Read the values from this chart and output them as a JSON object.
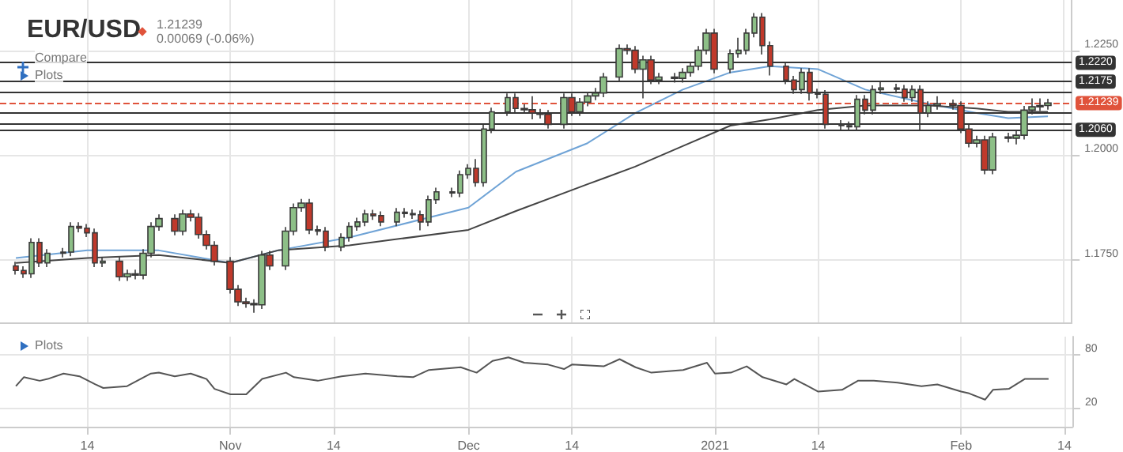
{
  "chart_data": [
    {
      "type": "candlestick",
      "title": "EUR/USD",
      "subtitle": "1.21239\n0.00069 (-0.06%)",
      "annotations": [
        "Compare",
        "Plots"
      ],
      "xlim": [
        "2020-10-03",
        "2021-02-15"
      ],
      "xticks": [
        {
          "value": "2020-10-14",
          "label": null
        },
        {
          "value": "2020-11-01",
          "label": null
        },
        {
          "value": "2020-11-14",
          "label": null
        },
        {
          "value": "2020-12-01",
          "label": null
        },
        {
          "value": "2020-12-14",
          "label": null
        },
        {
          "value": "2021-01-01",
          "label": null
        },
        {
          "value": "2021-01-14",
          "label": null
        },
        {
          "value": "2021-02-01",
          "label": null
        },
        {
          "value": "2021-02-14",
          "label": null
        }
      ],
      "ylim": [
        1.16,
        1.237
      ],
      "yticks": [
        {
          "value": 1.175,
          "label": "1.1750"
        },
        {
          "value": 1.2,
          "label": "1.2000"
        },
        {
          "value": 1.225,
          "label": "1.2250"
        }
      ],
      "tick_labels": "y",
      "grid": true,
      "ref_lines": [
        {
          "axis": "y",
          "value": 1.222,
          "label": "1.2220",
          "color": "#333333",
          "line_style": "solid"
        },
        {
          "axis": "y",
          "value": 1.2175,
          "label": "1.2175",
          "color": "#333333",
          "line_style": "solid"
        },
        {
          "axis": "y",
          "value": 1.21239,
          "label": "1.21239",
          "color": "#e0533b",
          "line_style": "dashed"
        },
        {
          "axis": "y",
          "value": 1.206,
          "label": "1.2060",
          "color": "#333333",
          "line_style": "solid"
        },
        {
          "axis": "y",
          "value": 1.215,
          "label": null,
          "color": "#333333",
          "line_style": "solid"
        },
        {
          "axis": "y",
          "value": 1.21,
          "label": null,
          "color": "#333333",
          "line_style": "solid"
        },
        {
          "axis": "y",
          "value": 1.2075,
          "label": null,
          "color": "#333333",
          "line_style": "solid"
        }
      ],
      "series": [
        {
          "type": "line",
          "color": "#6fa3d6",
          "x": [
            "2020-10-05",
            "2020-10-14",
            "2020-10-23",
            "2020-11-01",
            "2020-11-07",
            "2020-11-16",
            "2020-12-01",
            "2020-12-07",
            "2020-12-16",
            "2020-12-22",
            "2020-12-28",
            "2021-01-03",
            "2021-01-08",
            "2021-01-14",
            "2021-01-20",
            "2021-01-28",
            "2021-02-03",
            "2021-02-07",
            "2021-02-12"
          ],
          "values": [
            1.1754,
            1.1772,
            1.1772,
            1.1742,
            1.1772,
            1.1803,
            1.1874,
            1.196,
            1.2028,
            1.21,
            1.2156,
            1.2197,
            1.2212,
            1.2205,
            1.2156,
            1.2122,
            1.21,
            1.2088,
            1.2092
          ]
        },
        {
          "type": "line",
          "color": "#444444",
          "x": [
            "2020-10-05",
            "2020-10-14",
            "2020-10-23",
            "2020-11-01",
            "2020-11-07",
            "2020-11-16",
            "2020-12-01",
            "2020-12-07",
            "2020-12-16",
            "2020-12-22",
            "2020-12-28",
            "2021-01-03",
            "2021-01-08",
            "2021-01-14",
            "2021-01-20",
            "2021-01-28",
            "2021-02-03",
            "2021-02-07",
            "2021-02-12"
          ],
          "values": [
            1.1742,
            1.1754,
            1.1761,
            1.1742,
            1.1772,
            1.1784,
            1.1821,
            1.1866,
            1.193,
            1.1972,
            1.2021,
            1.207,
            1.2085,
            1.2107,
            1.2118,
            1.2118,
            1.2111,
            1.2103,
            1.2103
          ]
        },
        {
          "type": "candlestick",
          "colors": [
            "#c0392b",
            "#c0392b",
            "#8dbf87",
            "#c0392b",
            "#8dbf87",
            "#8dbf87",
            "#8dbf87",
            "#c0392b",
            "#c0392b",
            "#c0392b",
            "#8dbf87",
            "#c0392b",
            "#8dbf87",
            "#c0392b",
            "#8dbf87",
            "#8dbf87",
            "#8dbf87",
            "#c0392b",
            "#8dbf87",
            "#c0392b",
            "#c0392b",
            "#c0392b",
            "#c0392b",
            "#c0392b",
            "#c0392b",
            "#c0392b",
            "#c0392b",
            "#8dbf87",
            "#c0392b",
            "#8dbf87",
            "#8dbf87",
            "#8dbf87",
            "#c0392b",
            "#c0392b",
            "#c0392b",
            "#8dbf87",
            "#8dbf87",
            "#8dbf87",
            "#8dbf87",
            "#c0392b",
            "#c0392b",
            "#8dbf87",
            "#c0392b",
            "#c0392b",
            "#c0392b",
            "#8dbf87",
            "#8dbf87",
            "#c0392b",
            "#8dbf87",
            "#8dbf87",
            "#c0392b",
            "#8dbf87",
            "#8dbf87",
            "#8dbf87",
            "#c0392b",
            "#c0392b",
            "#c0392b",
            "#c0392b",
            "#c0392b",
            "#8dbf87",
            "#c0392b",
            "#8dbf87",
            "#8dbf87",
            "#8dbf87",
            "#8dbf87",
            "#8dbf87",
            "#c0392b",
            "#c0392b",
            "#8dbf87",
            "#c0392b",
            "#8dbf87",
            "#c0392b",
            "#8dbf87",
            "#8dbf87",
            "#8dbf87",
            "#8dbf87",
            "#c0392b",
            "#8dbf87",
            "#8dbf87",
            "#8dbf87",
            "#8dbf87",
            "#c0392b",
            "#c0392b",
            "#c0392b",
            "#c0392b",
            "#8dbf87",
            "#c0392b",
            "#c0392b",
            "#c0392b",
            "#c0392b",
            "#c0392b",
            "#8dbf87",
            "#c0392b",
            "#8dbf87",
            "#8dbf87",
            "#c0392b",
            "#c0392b",
            "#8dbf87",
            "#c0392b",
            "#8dbf87",
            "#8dbf87",
            "#c0392b",
            "#c0392b",
            "#c0392b",
            "#8dbf87",
            "#c0392b",
            "#8dbf87",
            "#c0392b",
            "#8dbf87",
            "#8dbf87",
            "#8dbf87",
            "#8dbf87",
            "#8dbf87"
          ],
          "x": [
            "2020-10-05",
            "2020-10-06",
            "2020-10-07",
            "2020-10-08",
            "2020-10-09",
            "2020-10-11",
            "2020-10-12",
            "2020-10-13",
            "2020-10-14",
            "2020-10-15",
            "2020-10-16",
            "2020-10-18",
            "2020-10-19",
            "2020-10-20",
            "2020-10-21",
            "2020-10-22",
            "2020-10-23",
            "2020-10-25",
            "2020-10-26",
            "2020-10-27",
            "2020-10-28",
            "2020-10-29",
            "2020-10-30",
            "2020-11-01",
            "2020-11-02",
            "2020-11-03",
            "2020-11-04",
            "2020-11-05",
            "2020-11-06",
            "2020-11-08",
            "2020-11-09",
            "2020-11-10",
            "2020-11-11",
            "2020-11-12",
            "2020-11-13",
            "2020-11-15",
            "2020-11-16",
            "2020-11-17",
            "2020-11-18",
            "2020-11-19",
            "2020-11-20",
            "2020-11-22",
            "2020-11-23",
            "2020-11-24",
            "2020-11-25",
            "2020-11-26",
            "2020-11-27",
            "2020-11-29",
            "2020-11-30",
            "2020-12-01",
            "2020-12-02",
            "2020-12-03",
            "2020-12-04",
            "2020-12-06",
            "2020-12-07",
            "2020-12-08",
            "2020-12-09",
            "2020-12-10",
            "2020-12-11",
            "2020-12-13",
            "2020-12-14",
            "2020-12-15",
            "2020-12-16",
            "2020-12-17",
            "2020-12-18",
            "2020-12-20",
            "2020-12-21",
            "2020-12-22",
            "2020-12-23",
            "2020-12-24",
            "2020-12-25",
            "2020-12-27",
            "2020-12-28",
            "2020-12-29",
            "2020-12-30",
            "2020-12-31",
            "2021-01-01",
            "2021-01-03",
            "2021-01-04",
            "2021-01-05",
            "2021-01-06",
            "2021-01-07",
            "2021-01-08",
            "2021-01-10",
            "2021-01-11",
            "2021-01-12",
            "2021-01-13",
            "2021-01-14",
            "2021-01-15",
            "2021-01-17",
            "2021-01-18",
            "2021-01-19",
            "2021-01-20",
            "2021-01-21",
            "2021-01-22",
            "2021-01-24",
            "2021-01-25",
            "2021-01-26",
            "2021-01-27",
            "2021-01-28",
            "2021-01-29",
            "2021-01-31",
            "2021-02-01",
            "2021-02-02",
            "2021-02-03",
            "2021-02-04",
            "2021-02-05",
            "2021-02-07",
            "2021-02-08",
            "2021-02-09",
            "2021-02-10",
            "2021-02-11",
            "2021-02-12"
          ],
          "ohlc": [
            [
              1.1735,
              1.1745,
              1.1714,
              1.1724
            ],
            [
              1.1724,
              1.1734,
              1.1706,
              1.1716
            ],
            [
              1.1716,
              1.1801,
              1.1706,
              1.1791
            ],
            [
              1.1791,
              1.1801,
              1.1732,
              1.1742
            ],
            [
              1.1742,
              1.1775,
              1.1732,
              1.1765
            ],
            [
              1.1765,
              1.1778,
              1.1755,
              1.1768
            ],
            [
              1.1768,
              1.1839,
              1.1758,
              1.1829
            ],
            [
              1.1829,
              1.1839,
              1.1815,
              1.1825
            ],
            [
              1.1825,
              1.1835,
              1.1804,
              1.1814
            ],
            [
              1.1814,
              1.1824,
              1.1732,
              1.1742
            ],
            [
              1.1742,
              1.1756,
              1.1732,
              1.1746
            ],
            [
              1.1746,
              1.1756,
              1.1699,
              1.1709
            ],
            [
              1.1709,
              1.1726,
              1.1699,
              1.1716
            ],
            [
              1.1716,
              1.1726,
              1.1703,
              1.1713
            ],
            [
              1.1713,
              1.1775,
              1.1703,
              1.1765
            ],
            [
              1.1765,
              1.1839,
              1.1755,
              1.1829
            ],
            [
              1.1829,
              1.1858,
              1.1819,
              1.1848
            ],
            [
              1.1848,
              1.1858,
              1.1808,
              1.1818
            ],
            [
              1.1818,
              1.1869,
              1.1808,
              1.1859
            ],
            [
              1.1859,
              1.1869,
              1.1841,
              1.1851
            ],
            [
              1.1851,
              1.1861,
              1.18,
              1.181
            ],
            [
              1.181,
              1.182,
              1.1774,
              1.1784
            ],
            [
              1.1784,
              1.1794,
              1.1736,
              1.1746
            ],
            [
              1.1746,
              1.1756,
              1.1669,
              1.1679
            ],
            [
              1.1679,
              1.1689,
              1.1639,
              1.1649
            ],
            [
              1.1649,
              1.1659,
              1.1635,
              1.1645
            ],
            [
              1.1645,
              1.1655,
              1.1623,
              1.1642
            ],
            [
              1.1642,
              1.1771,
              1.1632,
              1.1761
            ],
            [
              1.1761,
              1.1771,
              1.1725,
              1.1735
            ],
            [
              1.1735,
              1.1828,
              1.1725,
              1.1818
            ],
            [
              1.1818,
              1.1884,
              1.1808,
              1.1874
            ],
            [
              1.1874,
              1.1895,
              1.1864,
              1.1885
            ],
            [
              1.1885,
              1.1895,
              1.1811,
              1.1821
            ],
            [
              1.1821,
              1.1831,
              1.1808,
              1.1818
            ],
            [
              1.1818,
              1.1828,
              1.177,
              1.178
            ],
            [
              1.178,
              1.1813,
              1.177,
              1.1803
            ],
            [
              1.1803,
              1.1839,
              1.1793,
              1.1829
            ],
            [
              1.1829,
              1.185,
              1.1819,
              1.184
            ],
            [
              1.184,
              1.1869,
              1.183,
              1.1859
            ],
            [
              1.1859,
              1.1869,
              1.1845,
              1.1855
            ],
            [
              1.1855,
              1.1865,
              1.183,
              1.184
            ],
            [
              1.184,
              1.1873,
              1.183,
              1.1863
            ],
            [
              1.1863,
              1.1873,
              1.185,
              1.186
            ],
            [
              1.186,
              1.187,
              1.1847,
              1.1857
            ],
            [
              1.1857,
              1.1867,
              1.182,
              1.184
            ],
            [
              1.184,
              1.1903,
              1.183,
              1.1893
            ],
            [
              1.1893,
              1.1922,
              1.1883,
              1.1912
            ],
            [
              1.1912,
              1.1922,
              1.1899,
              1.1909
            ],
            [
              1.1909,
              1.1963,
              1.1899,
              1.1953
            ],
            [
              1.1953,
              1.1978,
              1.1943,
              1.1968
            ],
            [
              1.1968,
              1.199,
              1.1924,
              1.1934
            ],
            [
              1.1934,
              1.2072,
              1.1924,
              1.2062
            ],
            [
              1.2062,
              1.2113,
              1.2052,
              1.2103
            ],
            [
              1.2103,
              1.2147,
              1.2093,
              1.2137
            ],
            [
              1.2137,
              1.2147,
              1.2101,
              1.2111
            ],
            [
              1.2111,
              1.2121,
              1.2098,
              1.2108
            ],
            [
              1.2108,
              1.214,
              1.2085,
              1.21
            ],
            [
              1.21,
              1.211,
              1.2087,
              1.2097
            ],
            [
              1.2097,
              1.2107,
              1.2063,
              1.2073
            ],
            [
              1.2073,
              1.2147,
              1.2063,
              1.2137
            ],
            [
              1.2137,
              1.2147,
              1.2093,
              1.2103
            ],
            [
              1.2103,
              1.2136,
              1.2093,
              1.2126
            ],
            [
              1.2126,
              1.2151,
              1.2116,
              1.2141
            ],
            [
              1.2141,
              1.216,
              1.2131,
              1.2148
            ],
            [
              1.2148,
              1.2196,
              1.2138,
              1.2186
            ],
            [
              1.2186,
              1.2264,
              1.2176,
              1.2254
            ],
            [
              1.2254,
              1.2264,
              1.224,
              1.225
            ],
            [
              1.225,
              1.226,
              1.2195,
              1.2205
            ],
            [
              1.2205,
              1.2237,
              1.2135,
              1.2227
            ],
            [
              1.2227,
              1.2237,
              1.2169,
              1.2179
            ],
            [
              1.2179,
              1.2196,
              1.2169,
              1.2186
            ],
            [
              1.2186,
              1.2196,
              1.2173,
              1.2183
            ],
            [
              1.2183,
              1.2207,
              1.2173,
              1.2197
            ],
            [
              1.2197,
              1.2222,
              1.2187,
              1.2212
            ],
            [
              1.2212,
              1.226,
              1.2202,
              1.225
            ],
            [
              1.225,
              1.2301,
              1.224,
              1.2291
            ],
            [
              1.2291,
              1.2301,
              1.2195,
              1.2205
            ],
            [
              1.2205,
              1.2252,
              1.2195,
              1.2242
            ],
            [
              1.2242,
              1.228,
              1.2232,
              1.225
            ],
            [
              1.225,
              1.2301,
              1.224,
              1.2291
            ],
            [
              1.2291,
              1.2339,
              1.2281,
              1.2329
            ],
            [
              1.2329,
              1.2339,
              1.224,
              1.2261
            ],
            [
              1.2261,
              1.2271,
              1.219,
              1.2212
            ],
            [
              1.2212,
              1.2222,
              1.2169,
              1.2179
            ],
            [
              1.2179,
              1.2189,
              1.2146,
              1.2156
            ],
            [
              1.2156,
              1.2207,
              1.2146,
              1.2197
            ],
            [
              1.2197,
              1.2207,
              1.213,
              1.2148
            ],
            [
              1.2148,
              1.2158,
              1.2135,
              1.2145
            ],
            [
              1.2145,
              1.2155,
              1.2063,
              1.2073
            ],
            [
              1.2073,
              1.2083,
              1.206,
              1.207
            ],
            [
              1.207,
              1.208,
              1.2057,
              1.2067
            ],
            [
              1.2067,
              1.2143,
              1.2057,
              1.2133
            ],
            [
              1.2133,
              1.2143,
              1.2097,
              1.2107
            ],
            [
              1.2107,
              1.2166,
              1.2097,
              1.2156
            ],
            [
              1.2156,
              1.2175,
              1.2146,
              1.216
            ],
            [
              1.216,
              1.217,
              1.2147,
              1.2157
            ],
            [
              1.2157,
              1.2167,
              1.2127,
              1.2137
            ],
            [
              1.2137,
              1.2166,
              1.2127,
              1.2156
            ],
            [
              1.2156,
              1.2166,
              1.206,
              1.21
            ],
            [
              1.21,
              1.2128,
              1.209,
              1.2118
            ],
            [
              1.2118,
              1.214,
              1.2108,
              1.2122
            ],
            [
              1.2122,
              1.2132,
              1.2108,
              1.2118
            ],
            [
              1.2118,
              1.2128,
              1.2052,
              1.2062
            ],
            [
              1.2062,
              1.2072,
              1.2018,
              1.2028
            ],
            [
              1.2028,
              1.2046,
              1.2018,
              1.2036
            ],
            [
              1.2036,
              1.2046,
              1.1954,
              1.1964
            ],
            [
              1.1964,
              1.2053,
              1.1954,
              1.2043
            ],
            [
              1.2043,
              1.2053,
              1.203,
              1.204
            ],
            [
              1.204,
              1.2057,
              1.2025,
              1.2047
            ],
            [
              1.2047,
              1.2117,
              1.2037,
              1.2107
            ],
            [
              1.2107,
              1.2135,
              1.2097,
              1.2115
            ],
            [
              1.2115,
              1.2135,
              1.2105,
              1.2118
            ],
            [
              1.2118,
              1.2134,
              1.2108,
              1.2124
            ]
          ]
        }
      ]
    },
    {
      "type": "line",
      "annotations": [
        "Plots"
      ],
      "xlim": [
        "2020-10-03",
        "2021-02-15"
      ],
      "xticks": [
        {
          "value": "2020-10-14",
          "label": "14"
        },
        {
          "value": "2020-11-01",
          "label": "Nov"
        },
        {
          "value": "2020-11-14",
          "label": "14"
        },
        {
          "value": "2020-12-01",
          "label": "Dec"
        },
        {
          "value": "2020-12-14",
          "label": "14"
        },
        {
          "value": "2021-01-01",
          "label": "2021"
        },
        {
          "value": "2021-01-14",
          "label": "14"
        },
        {
          "value": "2021-02-01",
          "label": "Feb"
        },
        {
          "value": "2021-02-14",
          "label": "14"
        }
      ],
      "ylim": [
        0,
        100
      ],
      "yticks": [
        20,
        80
      ],
      "grid": true,
      "series": [
        {
          "type": "line",
          "color": "#555555",
          "x": [
            "2020-10-05",
            "2020-10-06",
            "2020-10-08",
            "2020-10-09",
            "2020-10-11",
            "2020-10-13",
            "2020-10-15",
            "2020-10-16",
            "2020-10-19",
            "2020-10-22",
            "2020-10-23",
            "2020-10-25",
            "2020-10-27",
            "2020-10-29",
            "2020-10-30",
            "2020-11-01",
            "2020-11-03",
            "2020-11-05",
            "2020-11-08",
            "2020-11-09",
            "2020-11-12",
            "2020-11-15",
            "2020-11-18",
            "2020-11-22",
            "2020-11-24",
            "2020-11-26",
            "2020-11-30",
            "2020-12-02",
            "2020-12-04",
            "2020-12-06",
            "2020-12-08",
            "2020-12-11",
            "2020-12-13",
            "2020-12-14",
            "2020-12-18",
            "2020-12-20",
            "2020-12-22",
            "2020-12-24",
            "2020-12-28",
            "2020-12-31",
            "2021-01-01",
            "2021-01-03",
            "2021-01-05",
            "2021-01-07",
            "2021-01-10",
            "2021-01-11",
            "2021-01-14",
            "2021-01-17",
            "2021-01-19",
            "2021-01-21",
            "2021-01-24",
            "2021-01-27",
            "2021-01-29",
            "2021-02-01",
            "2021-02-02",
            "2021-02-04",
            "2021-02-05",
            "2021-02-07",
            "2021-02-09",
            "2021-02-12"
          ],
          "values": [
            45,
            55,
            51,
            53,
            59,
            56,
            47,
            43,
            45,
            59,
            60,
            56,
            59,
            53,
            42,
            36,
            36,
            53,
            60,
            55,
            51,
            56,
            59,
            56,
            55,
            63,
            66,
            60,
            73,
            77,
            71,
            69,
            64,
            69,
            67,
            75,
            66,
            60,
            63,
            71,
            59,
            60,
            67,
            55,
            47,
            53,
            39,
            41,
            51,
            51,
            49,
            45,
            47,
            39,
            37,
            30,
            41,
            42,
            53,
            53
          ]
        }
      ]
    }
  ]
}
